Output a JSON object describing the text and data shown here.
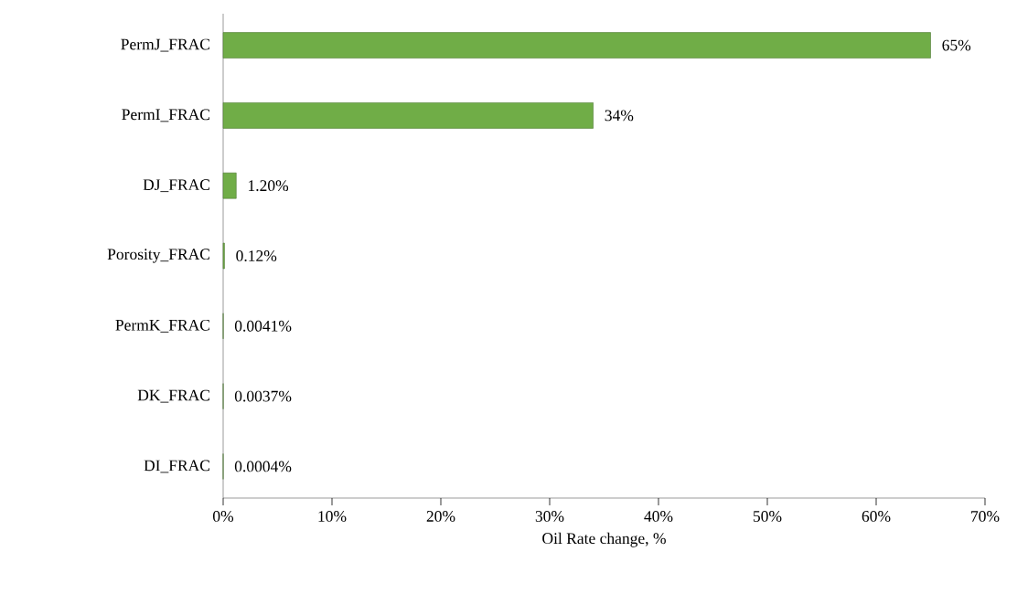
{
  "chart_data": {
    "type": "bar",
    "orientation": "horizontal",
    "xlabel": "Oil Rate change, %",
    "categories": [
      "PermJ_FRAC",
      "PermI_FRAC",
      "DJ_FRAC",
      "Porosity_FRAC",
      "PermK_FRAC",
      "DK_FRAC",
      "DI_FRAC"
    ],
    "values": [
      65,
      34,
      1.2,
      0.12,
      0.0041,
      0.0037,
      0.0004
    ],
    "value_labels": [
      "65%",
      "34%",
      "1.20%",
      "0.12%",
      "0.0041%",
      "0.0037%",
      "0.0004%"
    ],
    "color": "#70ad47",
    "xlim": [
      0,
      70
    ],
    "xticks": [
      {
        "value": 0,
        "label": "0%"
      },
      {
        "value": 10,
        "label": "10%"
      },
      {
        "value": 20,
        "label": "20%"
      },
      {
        "value": 30,
        "label": "30%"
      },
      {
        "value": 40,
        "label": "40%"
      },
      {
        "value": 50,
        "label": "50%"
      },
      {
        "value": 60,
        "label": "60%"
      },
      {
        "value": 70,
        "label": "70%"
      }
    ],
    "grid": false
  }
}
